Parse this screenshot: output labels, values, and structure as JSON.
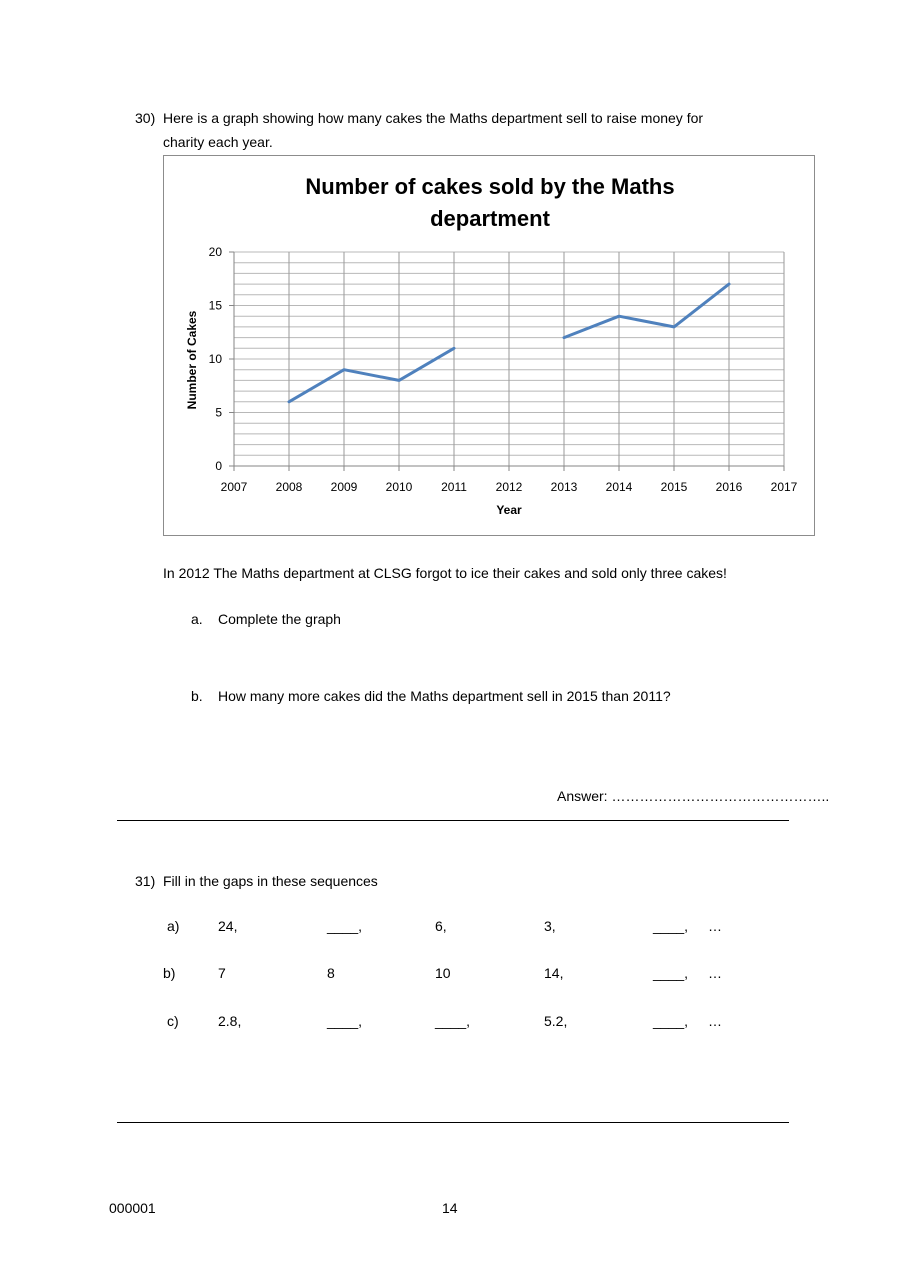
{
  "q30": {
    "number": "30)",
    "intro_line1": "Here is a graph showing how many cakes the Maths department sell to raise money for",
    "intro_line2": "charity each year.",
    "statement": "In 2012 The Maths department at CLSG forgot to ice their cakes and sold only three cakes!",
    "part_a_label": "a.",
    "part_a_text": "Complete the graph",
    "part_b_label": "b.",
    "part_b_text": "How many more cakes did the Maths department sell in 2015 than 2011?",
    "answer_label": "Answer: ……………………………………….."
  },
  "chart_data": {
    "type": "line",
    "title_line1": "Number of cakes sold by the Maths",
    "title_line2": "department",
    "xlabel": "Year",
    "ylabel": "Number of Cakes",
    "x_ticks": [
      "2007",
      "2008",
      "2009",
      "2010",
      "2011",
      "2012",
      "2013",
      "2014",
      "2015",
      "2016",
      "2017"
    ],
    "y_ticks": [
      "0",
      "5",
      "10",
      "15",
      "20"
    ],
    "xlim": [
      2007,
      2017
    ],
    "ylim": [
      0,
      20
    ],
    "grid": true,
    "line_color": "#4f81bd",
    "segments": [
      {
        "x": [
          2008,
          2009,
          2010,
          2011
        ],
        "y": [
          6,
          9,
          8,
          11
        ]
      },
      {
        "x": [
          2013,
          2014,
          2015,
          2016
        ],
        "y": [
          12,
          14,
          13,
          17
        ]
      }
    ]
  },
  "q31": {
    "number": "31)",
    "intro": "Fill in the gaps in these sequences",
    "rows": [
      {
        "label": "a)",
        "cells": [
          "24,",
          "____,",
          "6,",
          "3,",
          "____,",
          "…"
        ]
      },
      {
        "label": "b)",
        "cells": [
          "7",
          "8",
          "10",
          "14,",
          "____,",
          "…"
        ]
      },
      {
        "label": "c)",
        "cells": [
          "2.8,",
          "____,",
          "____,",
          "5.2,",
          "____,",
          "…"
        ]
      }
    ]
  },
  "footer": {
    "code": "000001",
    "page": "14"
  }
}
